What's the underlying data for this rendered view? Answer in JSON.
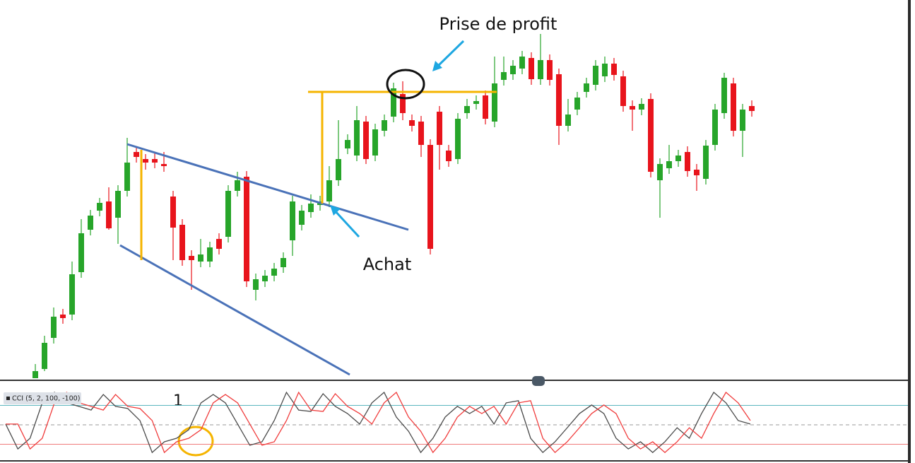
{
  "chart_data": {
    "type": "candlestick",
    "ylim": [
      0,
      535
    ],
    "up_color": "#27a52a",
    "down_color": "#e8141c",
    "open": [
      0,
      13,
      57,
      90,
      90,
      150,
      210,
      237,
      250,
      227,
      265,
      320,
      310,
      310,
      303,
      257,
      217,
      173,
      165,
      165,
      197,
      200,
      265,
      285,
      125,
      137,
      145,
      157,
      195,
      217,
      235,
      245,
      250,
      280,
      325,
      315,
      363,
      315,
      350,
      370,
      402,
      365,
      363,
      330,
      377,
      322,
      310,
      375,
      388,
      400,
      363,
      422,
      430,
      438,
      453,
      423,
      450,
      430,
      357,
      380,
      405,
      415,
      427,
      445,
      427,
      385,
      380,
      395,
      280,
      297,
      307,
      320,
      295,
      282,
      330,
      375,
      417,
      350,
      385
    ],
    "high": [
      20,
      60,
      100,
      98,
      165,
      225,
      238,
      255,
      270,
      273,
      340,
      328,
      317,
      318,
      320,
      265,
      225,
      181,
      197,
      193,
      205,
      273,
      292,
      293,
      148,
      153,
      163,
      178,
      258,
      245,
      260,
      258,
      300,
      365,
      345,
      385,
      371,
      360,
      373,
      418,
      420,
      373,
      371,
      338,
      385,
      330,
      375,
      395,
      400,
      407,
      455,
      455,
      450,
      463,
      461,
      487,
      458,
      438,
      395,
      405,
      425,
      450,
      455,
      453,
      435,
      393,
      396,
      403,
      311,
      330,
      323,
      328,
      303,
      337,
      388,
      432,
      425,
      388,
      393
    ],
    "low": [
      0,
      10,
      49,
      77,
      82,
      142,
      202,
      229,
      210,
      190,
      257,
      305,
      295,
      297,
      292,
      167,
      159,
      125,
      157,
      157,
      175,
      192,
      257,
      129,
      110,
      129,
      137,
      149,
      173,
      209,
      227,
      237,
      242,
      272,
      317,
      307,
      303,
      307,
      342,
      362,
      365,
      349,
      313,
      175,
      295,
      299,
      303,
      367,
      380,
      359,
      355,
      414,
      422,
      430,
      415,
      415,
      414,
      330,
      349,
      372,
      397,
      407,
      419,
      421,
      377,
      350,
      372,
      284,
      227,
      289,
      299,
      285,
      265,
      274,
      322,
      367,
      342,
      313,
      370
    ],
    "close": [
      10,
      50,
      87,
      85,
      147,
      205,
      230,
      248,
      212,
      265,
      305,
      313,
      305,
      305,
      300,
      213,
      167,
      167,
      175,
      185,
      183,
      265,
      280,
      137,
      140,
      145,
      155,
      170,
      250,
      237,
      247,
      250,
      280,
      310,
      337,
      365,
      310,
      352,
      365,
      410,
      375,
      357,
      330,
      183,
      330,
      307,
      367,
      385,
      392,
      367,
      417,
      433,
      442,
      455,
      423,
      450,
      422,
      357,
      373,
      397,
      417,
      442,
      445,
      429,
      385,
      380,
      388,
      292,
      303,
      307,
      315,
      293,
      287,
      329,
      380,
      425,
      350,
      380,
      378
    ],
    "annotations": [
      "Prise de profit",
      "Achat",
      "1"
    ],
    "indicator": {
      "label": "CCI (5, 2, 100, -100)",
      "ylim": [
        -178,
        218
      ],
      "levels": [
        100,
        0,
        -100
      ],
      "level_colors": [
        "#5ab6bf",
        "#999999",
        "#f07a7a"
      ],
      "series": [
        {
          "color": "#4a4a4a",
          "values": [
            4,
            -124,
            -69,
            113,
            167,
            113,
            95,
            76,
            156,
            95,
            84,
            22,
            -142,
            -87,
            -69,
            -25,
            113,
            156,
            113,
            4,
            -105,
            -87,
            22,
            167,
            76,
            69,
            160,
            95,
            58,
            4,
            113,
            167,
            40,
            -33,
            -142,
            -69,
            40,
            95,
            58,
            95,
            4,
            113,
            124,
            -69,
            -142,
            -87,
            -15,
            58,
            102,
            58,
            -69,
            -124,
            -87,
            -142,
            -87,
            -15,
            -69,
            58,
            167,
            113,
            22,
            4
          ]
        },
        {
          "color": "#f03c3c",
          "values": [
            4,
            4,
            -124,
            -69,
            113,
            167,
            113,
            95,
            76,
            156,
            95,
            84,
            22,
            -142,
            -87,
            -69,
            -25,
            113,
            156,
            113,
            4,
            -105,
            -87,
            22,
            167,
            76,
            69,
            160,
            95,
            58,
            4,
            113,
            167,
            40,
            -33,
            -142,
            -69,
            40,
            95,
            58,
            95,
            4,
            113,
            124,
            -69,
            -142,
            -87,
            -15,
            58,
            102,
            58,
            -69,
            -124,
            -87,
            -142,
            -87,
            -15,
            -69,
            58,
            167,
            113,
            22
          ]
        }
      ]
    }
  }
}
